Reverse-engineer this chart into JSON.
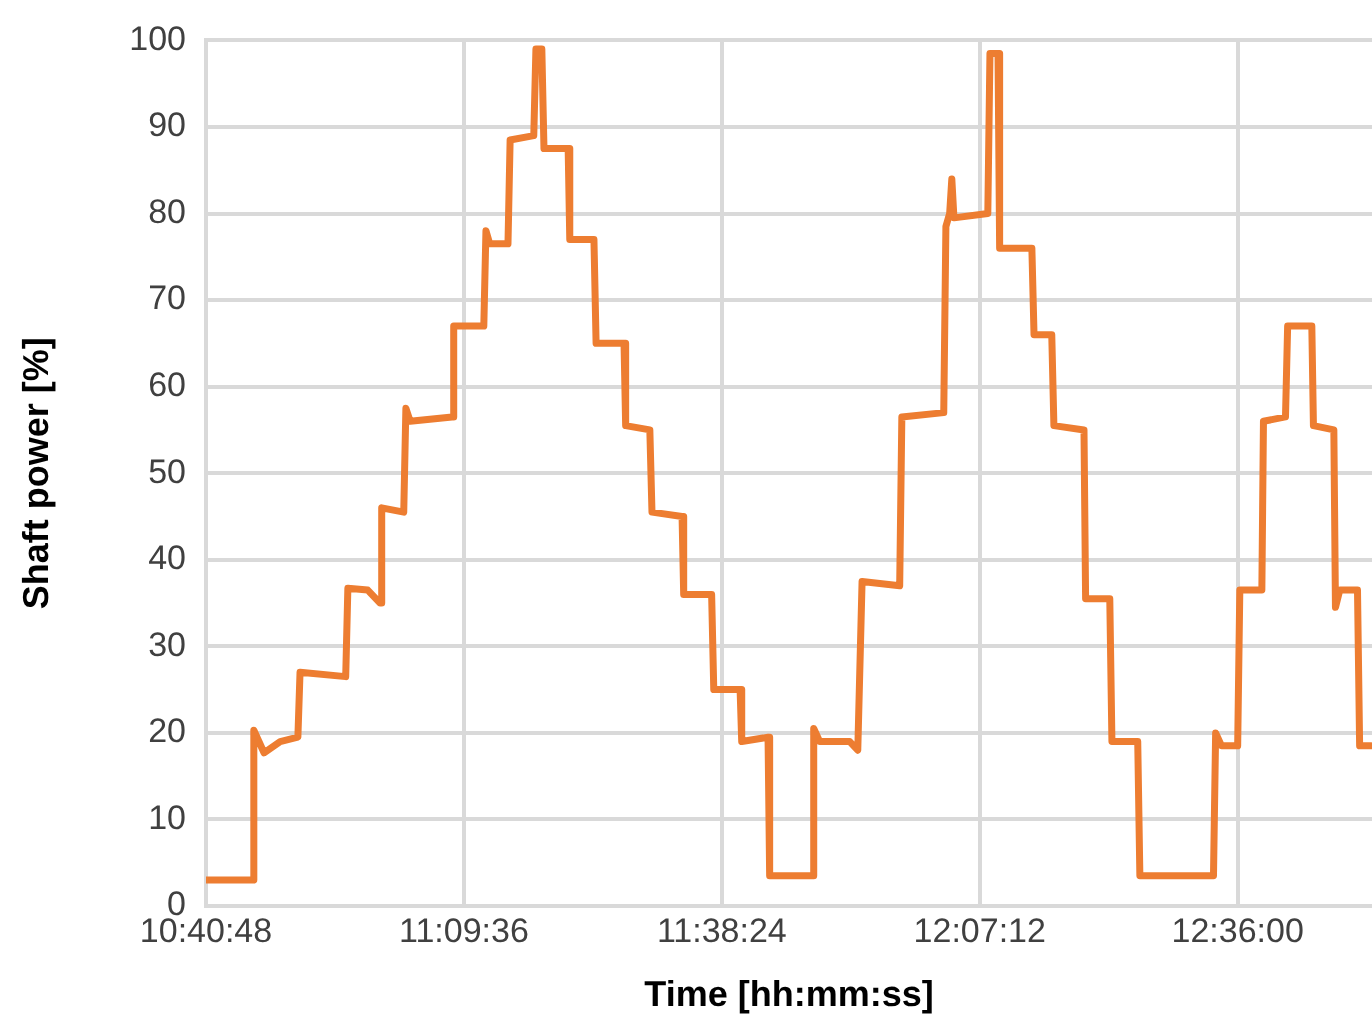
{
  "chart_data": {
    "type": "line",
    "xlabel": "Time [hh:mm:ss]",
    "ylabel": "Shaft power [%]",
    "x": [
      10.68,
      10.769,
      10.769,
      10.788,
      10.818,
      10.851,
      10.855,
      10.94,
      10.944,
      10.981,
      11.004,
      11.007,
      11.048,
      11.052,
      11.06,
      11.138,
      11.141,
      11.197,
      11.201,
      11.208,
      11.242,
      11.246,
      11.29,
      11.294,
      11.305,
      11.309,
      11.354,
      11.357,
      11.402,
      11.406,
      11.458,
      11.461,
      11.506,
      11.51,
      11.566,
      11.569,
      11.621,
      11.625,
      11.674,
      11.677,
      11.726,
      11.729,
      11.808,
      11.811,
      11.822,
      11.878,
      11.893,
      11.901,
      11.971,
      11.975,
      12.053,
      12.057,
      12.064,
      12.068,
      12.072,
      12.135,
      12.139,
      12.154,
      12.157,
      12.217,
      12.221,
      12.254,
      12.258,
      12.314,
      12.317,
      12.362,
      12.366,
      12.414,
      12.418,
      12.555,
      12.559,
      12.57,
      12.6,
      12.604,
      12.645,
      12.648,
      12.689,
      12.693,
      12.738,
      12.741,
      12.779,
      12.782,
      12.79,
      12.823,
      12.827,
      12.849
    ],
    "series": [
      {
        "color": "#ed7d31",
        "values": [
          3,
          3,
          20.3,
          17.7,
          19,
          19.5,
          27,
          26.5,
          36.7,
          36.5,
          35,
          46,
          45.5,
          57.5,
          56,
          56.5,
          67,
          67,
          78,
          76.5,
          76.5,
          88.5,
          89,
          99,
          99,
          87.5,
          87.5,
          77,
          77,
          65,
          65,
          55.5,
          55,
          45.5,
          45,
          36,
          36,
          25,
          25,
          19,
          19.5,
          3.5,
          3.5,
          20.5,
          19,
          19,
          18,
          37.5,
          37,
          56.5,
          57,
          78.5,
          80,
          84,
          79.5,
          80,
          98.5,
          98.5,
          76,
          76,
          66,
          66,
          55.5,
          55,
          35.5,
          35.5,
          19,
          19,
          3.5,
          3.5,
          20,
          18.5,
          18.5,
          36.5,
          36.5,
          56,
          56.5,
          67,
          67,
          55.5,
          55,
          34.5,
          36.5,
          36.5,
          18.5,
          18.5
        ]
      }
    ],
    "xlim": [
      10.68,
      12.85
    ],
    "xticks": [
      {
        "value": 10.68,
        "label": "10:40:48"
      },
      {
        "value": 11.16,
        "label": "11:09:36"
      },
      {
        "value": 11.64,
        "label": "11:38:24"
      },
      {
        "value": 12.12,
        "label": "12:07:12"
      },
      {
        "value": 12.6,
        "label": "12:36:00"
      }
    ],
    "ylim": [
      0,
      100
    ],
    "yticks": [
      0,
      10,
      20,
      30,
      40,
      50,
      60,
      70,
      80,
      90,
      100
    ],
    "grid": true,
    "legend": false,
    "marker": "none",
    "line_style": "solid"
  }
}
